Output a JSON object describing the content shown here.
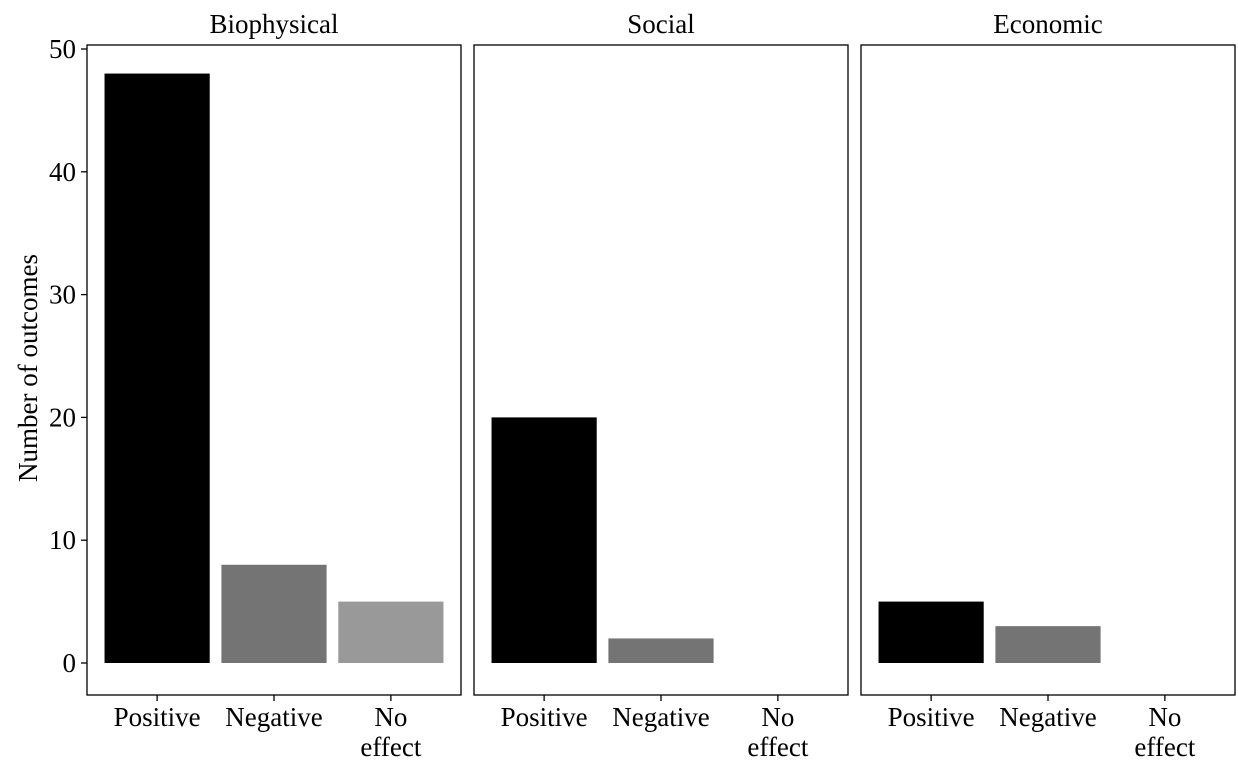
{
  "chart_data": {
    "type": "bar",
    "ylabel": "Number of outcomes",
    "ylim": [
      0,
      50
    ],
    "yticks": [
      0,
      10,
      20,
      30,
      40,
      50
    ],
    "grid": false,
    "categories": [
      {
        "lines": [
          "Positive"
        ]
      },
      {
        "lines": [
          "Negative"
        ]
      },
      {
        "lines": [
          "No",
          "effect"
        ]
      }
    ],
    "colors": [
      "#000000",
      "#747474",
      "#999999"
    ],
    "facets": [
      {
        "title": "Biophysical",
        "values": [
          48,
          8,
          5
        ]
      },
      {
        "title": "Social",
        "values": [
          20,
          2,
          0
        ]
      },
      {
        "title": "Economic",
        "values": [
          5,
          3,
          0
        ]
      }
    ]
  }
}
